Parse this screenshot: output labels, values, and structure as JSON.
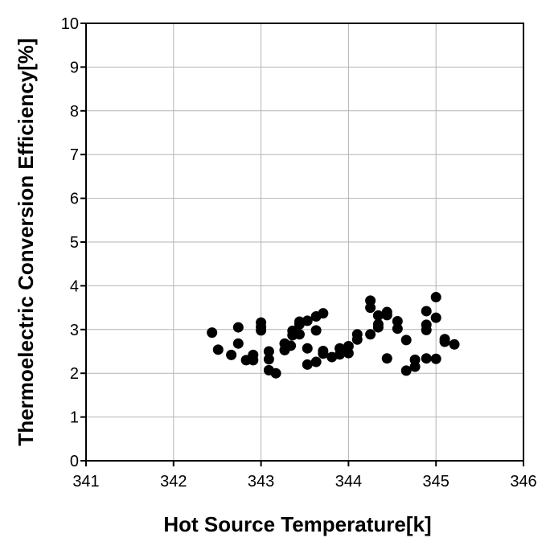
{
  "chart_data": {
    "type": "scatter",
    "xlabel": "Hot Source Temperature[k]",
    "ylabel": "Thermoelectric Conversion Efficiency[%]",
    "xlim": [
      341,
      346
    ],
    "ylim": [
      0,
      10
    ],
    "xticks": [
      341,
      342,
      343,
      344,
      345,
      346
    ],
    "yticks": [
      0,
      1,
      2,
      3,
      4,
      5,
      6,
      7,
      8,
      9,
      10
    ],
    "grid": true,
    "legend": "none",
    "marker_color": "#000000",
    "points": [
      [
        342.44,
        2.93
      ],
      [
        342.51,
        2.54
      ],
      [
        342.66,
        2.42
      ],
      [
        342.74,
        3.05
      ],
      [
        342.74,
        2.68
      ],
      [
        342.83,
        2.3
      ],
      [
        342.91,
        2.42
      ],
      [
        342.91,
        2.3
      ],
      [
        343.0,
        3.16
      ],
      [
        343.0,
        3.06
      ],
      [
        343.0,
        2.98
      ],
      [
        343.09,
        2.5
      ],
      [
        343.09,
        2.32
      ],
      [
        343.09,
        2.07
      ],
      [
        343.17,
        2.0
      ],
      [
        343.27,
        2.68
      ],
      [
        343.27,
        2.53
      ],
      [
        343.34,
        2.63
      ],
      [
        343.36,
        2.97
      ],
      [
        343.36,
        2.87
      ],
      [
        343.44,
        3.18
      ],
      [
        343.44,
        3.12
      ],
      [
        343.44,
        2.89
      ],
      [
        343.53,
        3.2
      ],
      [
        343.53,
        2.57
      ],
      [
        343.53,
        2.2
      ],
      [
        343.63,
        3.3
      ],
      [
        343.63,
        2.98
      ],
      [
        343.63,
        2.26
      ],
      [
        343.71,
        3.37
      ],
      [
        343.71,
        2.51
      ],
      [
        343.71,
        2.45
      ],
      [
        343.81,
        2.37
      ],
      [
        343.9,
        2.57
      ],
      [
        343.9,
        2.43
      ],
      [
        344.0,
        2.62
      ],
      [
        344.0,
        2.46
      ],
      [
        344.1,
        2.89
      ],
      [
        344.1,
        2.77
      ],
      [
        344.25,
        3.66
      ],
      [
        344.25,
        3.5
      ],
      [
        344.25,
        2.89
      ],
      [
        344.34,
        3.32
      ],
      [
        344.34,
        3.12
      ],
      [
        344.34,
        3.05
      ],
      [
        344.44,
        3.4
      ],
      [
        344.44,
        3.33
      ],
      [
        344.44,
        2.34
      ],
      [
        344.56,
        3.19
      ],
      [
        344.56,
        3.02
      ],
      [
        344.66,
        2.76
      ],
      [
        344.66,
        2.06
      ],
      [
        344.76,
        2.31
      ],
      [
        344.76,
        2.15
      ],
      [
        344.89,
        3.42
      ],
      [
        344.89,
        3.11
      ],
      [
        344.89,
        2.99
      ],
      [
        344.89,
        2.34
      ],
      [
        345.0,
        3.74
      ],
      [
        345.0,
        3.27
      ],
      [
        345.0,
        2.33
      ],
      [
        345.1,
        2.78
      ],
      [
        345.1,
        2.72
      ],
      [
        345.21,
        2.66
      ]
    ]
  }
}
